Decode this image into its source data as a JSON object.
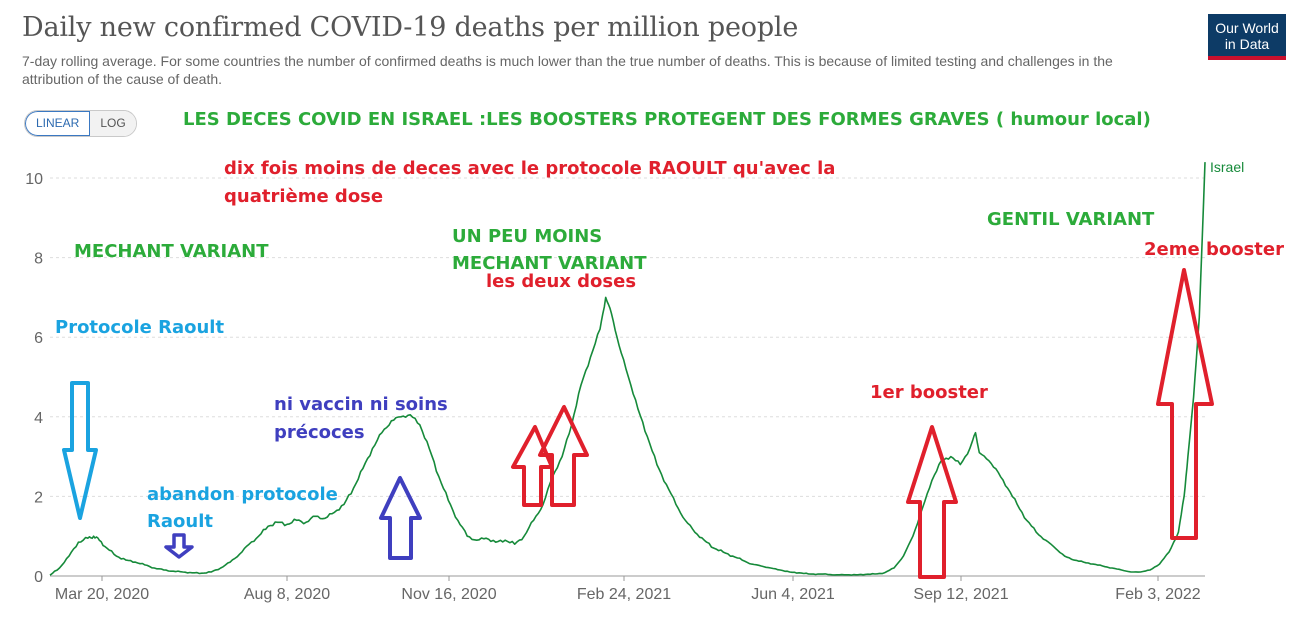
{
  "header": {
    "title": "Daily new confirmed COVID-19 deaths per million people",
    "subtitle": "7-day rolling average. For some countries the number of confirmed deaths is much lower than the true number of deaths. This is because of limited testing and challenges in the attribution of the cause of death.",
    "logo_line1": "Our World",
    "logo_line2": "in Data"
  },
  "toggle": {
    "linear_label": "LINEAR",
    "log_label": "LOG",
    "selected": "LINEAR"
  },
  "colors": {
    "line": "#168a3a",
    "green_text": "#2cab3a",
    "red": "#e0202c",
    "blue": "#1aa3e0",
    "purple": "#3f3fbf",
    "grid": "#dddddd",
    "axis_text": "#666666"
  },
  "chart_data": {
    "type": "line",
    "title": "Daily new confirmed COVID-19 deaths per million people",
    "xlabel": "",
    "ylabel": "",
    "ylim": [
      0,
      10.5
    ],
    "y_ticks": [
      "0",
      "2",
      "4",
      "6",
      "8",
      "10"
    ],
    "x_ticks": [
      "Mar 20, 2020",
      "Aug 8, 2020",
      "Nov 16, 2020",
      "Feb 24, 2021",
      "Jun 4, 2021",
      "Sep 12, 2021",
      "Feb 3, 2022"
    ],
    "grid": true,
    "legend": "end-of-line",
    "series": [
      {
        "name": "Israel",
        "points": [
          [
            0,
            0.02
          ],
          [
            5,
            0.2
          ],
          [
            10,
            0.5
          ],
          [
            15,
            0.85
          ],
          [
            20,
            0.95
          ],
          [
            23,
            1.0
          ],
          [
            26,
            0.9
          ],
          [
            30,
            0.7
          ],
          [
            35,
            0.5
          ],
          [
            40,
            0.4
          ],
          [
            45,
            0.35
          ],
          [
            50,
            0.28
          ],
          [
            55,
            0.2
          ],
          [
            60,
            0.15
          ],
          [
            65,
            0.12
          ],
          [
            70,
            0.1
          ],
          [
            75,
            0.08
          ],
          [
            80,
            0.07
          ],
          [
            85,
            0.1
          ],
          [
            90,
            0.2
          ],
          [
            95,
            0.35
          ],
          [
            100,
            0.55
          ],
          [
            105,
            0.8
          ],
          [
            110,
            1.0
          ],
          [
            115,
            1.25
          ],
          [
            120,
            1.35
          ],
          [
            125,
            1.3
          ],
          [
            130,
            1.4
          ],
          [
            135,
            1.35
          ],
          [
            140,
            1.5
          ],
          [
            145,
            1.45
          ],
          [
            150,
            1.6
          ],
          [
            155,
            1.8
          ],
          [
            160,
            2.2
          ],
          [
            165,
            2.7
          ],
          [
            170,
            3.2
          ],
          [
            175,
            3.6
          ],
          [
            180,
            3.9
          ],
          [
            185,
            4.0
          ],
          [
            190,
            4.05
          ],
          [
            195,
            3.8
          ],
          [
            200,
            3.2
          ],
          [
            205,
            2.5
          ],
          [
            210,
            1.9
          ],
          [
            215,
            1.4
          ],
          [
            220,
            1.0
          ],
          [
            225,
            0.9
          ],
          [
            230,
            0.95
          ],
          [
            235,
            0.85
          ],
          [
            240,
            0.9
          ],
          [
            245,
            0.8
          ],
          [
            250,
            1.0
          ],
          [
            255,
            1.4
          ],
          [
            260,
            1.8
          ],
          [
            265,
            2.5
          ],
          [
            270,
            3.0
          ],
          [
            275,
            3.8
          ],
          [
            280,
            4.8
          ],
          [
            285,
            5.5
          ],
          [
            290,
            6.2
          ],
          [
            293,
            7.0
          ],
          [
            296,
            6.6
          ],
          [
            300,
            5.8
          ],
          [
            305,
            5.0
          ],
          [
            310,
            4.2
          ],
          [
            315,
            3.5
          ],
          [
            320,
            2.8
          ],
          [
            325,
            2.3
          ],
          [
            330,
            1.8
          ],
          [
            335,
            1.4
          ],
          [
            340,
            1.1
          ],
          [
            345,
            0.9
          ],
          [
            350,
            0.7
          ],
          [
            355,
            0.6
          ],
          [
            360,
            0.5
          ],
          [
            365,
            0.4
          ],
          [
            370,
            0.3
          ],
          [
            375,
            0.25
          ],
          [
            380,
            0.2
          ],
          [
            385,
            0.15
          ],
          [
            390,
            0.1
          ],
          [
            395,
            0.08
          ],
          [
            400,
            0.05
          ],
          [
            405,
            0.05
          ],
          [
            410,
            0.04
          ],
          [
            415,
            0.03
          ],
          [
            420,
            0.03
          ],
          [
            425,
            0.03
          ],
          [
            430,
            0.04
          ],
          [
            435,
            0.05
          ],
          [
            440,
            0.08
          ],
          [
            445,
            0.2
          ],
          [
            450,
            0.5
          ],
          [
            455,
            1.0
          ],
          [
            460,
            1.7
          ],
          [
            465,
            2.4
          ],
          [
            470,
            2.9
          ],
          [
            475,
            3.0
          ],
          [
            480,
            2.8
          ],
          [
            485,
            3.2
          ],
          [
            488,
            3.6
          ],
          [
            490,
            3.1
          ],
          [
            495,
            2.9
          ],
          [
            500,
            2.6
          ],
          [
            505,
            2.2
          ],
          [
            510,
            1.8
          ],
          [
            515,
            1.4
          ],
          [
            520,
            1.1
          ],
          [
            525,
            0.9
          ],
          [
            530,
            0.7
          ],
          [
            535,
            0.5
          ],
          [
            540,
            0.4
          ],
          [
            545,
            0.35
          ],
          [
            550,
            0.3
          ],
          [
            555,
            0.25
          ],
          [
            560,
            0.2
          ],
          [
            565,
            0.15
          ],
          [
            570,
            0.1
          ],
          [
            575,
            0.1
          ],
          [
            580,
            0.15
          ],
          [
            585,
            0.3
          ],
          [
            590,
            0.6
          ],
          [
            595,
            1.1
          ],
          [
            598,
            2.0
          ],
          [
            600,
            3.0
          ],
          [
            603,
            4.5
          ],
          [
            606,
            6.5
          ],
          [
            609,
            10.4
          ]
        ]
      }
    ]
  },
  "annotations": {
    "header_note": "LES DECES COVID EN ISRAEL :LES BOOSTERS PROTEGENT  DES FORMES GRAVES ( humour local)",
    "raoult_line1": "dix fois moins de deces avec le protocole RAOULT qu'avec  la",
    "raoult_line2": "quatrième dose",
    "mechant_variant": "MECHANT VARIANT",
    "un_peu_line1": "UN PEU MOINS",
    "un_peu_line2": "MECHANT VARIANT",
    "gentil_variant": "GENTIL VARIANT",
    "deux_boosters": "2eme booster",
    "deux_doses": "les deux doses",
    "protocole_raoult": "Protocole Raoult",
    "ni_vaccin_line1": "ni vaccin ni soins",
    "ni_vaccin_line2": "précoces",
    "premier_booster": "1er booster",
    "abandon_line1": "abandon protocole",
    "abandon_line2": "Raoult"
  }
}
